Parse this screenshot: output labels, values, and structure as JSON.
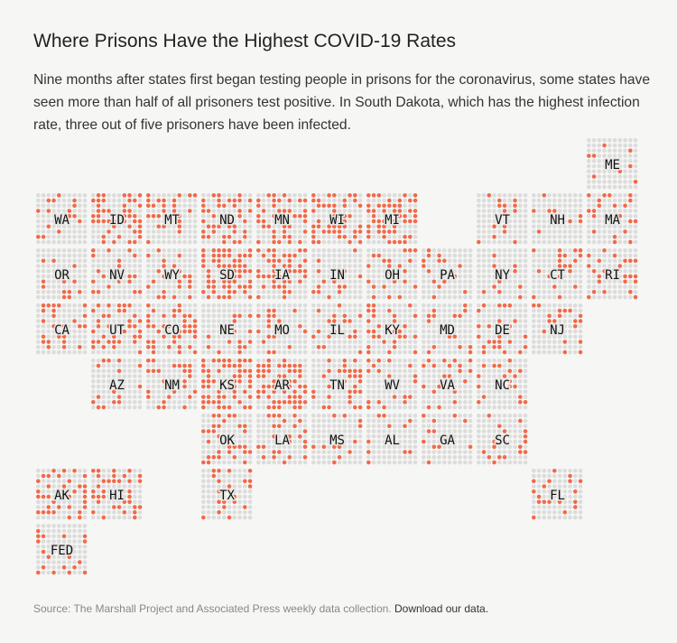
{
  "title": "Where Prisons Have the Highest COVID-19 Rates",
  "description": "Nine months after states first began testing people in prisons for the coronavirus, some states have seen more than half of all prisoners test positive. In South Dakota, which has the highest infection rate, three out of five prisoners have been infected.",
  "source_text": "Source: The Marshall Project and Associated Press weekly data collection.",
  "download_link": "Download our data.",
  "colors": {
    "infected": "#f06a4a",
    "not_infected": "#dcdcdc",
    "background": "#f6f6f4"
  },
  "chart_data": {
    "type": "tile-grid-map (10x10 dot grid per state)",
    "unit": "infected prisoners per 100 (estimated)",
    "states": [
      {
        "label": "ME",
        "row": 0,
        "col": 10,
        "rate": 8
      },
      {
        "label": "WA",
        "row": 1,
        "col": 0,
        "rate": 15
      },
      {
        "label": "ID",
        "row": 1,
        "col": 1,
        "rate": 45
      },
      {
        "label": "MT",
        "row": 1,
        "col": 2,
        "rate": 25
      },
      {
        "label": "ND",
        "row": 1,
        "col": 3,
        "rate": 40
      },
      {
        "label": "MN",
        "row": 1,
        "col": 4,
        "rate": 40
      },
      {
        "label": "WI",
        "row": 1,
        "col": 5,
        "rate": 45
      },
      {
        "label": "MI",
        "row": 1,
        "col": 6,
        "rate": 50
      },
      {
        "label": "VT",
        "row": 1,
        "col": 8,
        "rate": 15
      },
      {
        "label": "NH",
        "row": 1,
        "col": 9,
        "rate": 8
      },
      {
        "label": "MA",
        "row": 1,
        "col": 10,
        "rate": 20
      },
      {
        "label": "OR",
        "row": 2,
        "col": 0,
        "rate": 12
      },
      {
        "label": "NV",
        "row": 2,
        "col": 1,
        "rate": 20
      },
      {
        "label": "WY",
        "row": 2,
        "col": 2,
        "rate": 22
      },
      {
        "label": "SD",
        "row": 2,
        "col": 3,
        "rate": 60
      },
      {
        "label": "IA",
        "row": 2,
        "col": 4,
        "rate": 45
      },
      {
        "label": "IN",
        "row": 2,
        "col": 5,
        "rate": 15
      },
      {
        "label": "OH",
        "row": 2,
        "col": 6,
        "rate": 22
      },
      {
        "label": "PA",
        "row": 2,
        "col": 7,
        "rate": 15
      },
      {
        "label": "NY",
        "row": 2,
        "col": 8,
        "rate": 10
      },
      {
        "label": "CT",
        "row": 2,
        "col": 9,
        "rate": 20
      },
      {
        "label": "RI",
        "row": 2,
        "col": 10,
        "rate": 25
      },
      {
        "label": "CA",
        "row": 3,
        "col": 0,
        "rate": 25
      },
      {
        "label": "UT",
        "row": 3,
        "col": 1,
        "rate": 35
      },
      {
        "label": "CO",
        "row": 3,
        "col": 2,
        "rate": 40
      },
      {
        "label": "NE",
        "row": 3,
        "col": 3,
        "rate": 15
      },
      {
        "label": "MO",
        "row": 3,
        "col": 4,
        "rate": 20
      },
      {
        "label": "IL",
        "row": 3,
        "col": 5,
        "rate": 20
      },
      {
        "label": "KY",
        "row": 3,
        "col": 6,
        "rate": 30
      },
      {
        "label": "MD",
        "row": 3,
        "col": 7,
        "rate": 15
      },
      {
        "label": "DE",
        "row": 3,
        "col": 8,
        "rate": 25
      },
      {
        "label": "NJ",
        "row": 3,
        "col": 9,
        "rate": 18
      },
      {
        "label": "AZ",
        "row": 4,
        "col": 1,
        "rate": 15
      },
      {
        "label": "NM",
        "row": 4,
        "col": 2,
        "rate": 25
      },
      {
        "label": "KS",
        "row": 4,
        "col": 3,
        "rate": 55
      },
      {
        "label": "AR",
        "row": 4,
        "col": 4,
        "rate": 55
      },
      {
        "label": "TN",
        "row": 4,
        "col": 5,
        "rate": 30
      },
      {
        "label": "WV",
        "row": 4,
        "col": 6,
        "rate": 18
      },
      {
        "label": "VA",
        "row": 4,
        "col": 7,
        "rate": 20
      },
      {
        "label": "NC",
        "row": 4,
        "col": 8,
        "rate": 18
      },
      {
        "label": "OK",
        "row": 5,
        "col": 3,
        "rate": 30
      },
      {
        "label": "LA",
        "row": 5,
        "col": 4,
        "rate": 25
      },
      {
        "label": "MS",
        "row": 5,
        "col": 5,
        "rate": 12
      },
      {
        "label": "AL",
        "row": 5,
        "col": 6,
        "rate": 10
      },
      {
        "label": "GA",
        "row": 5,
        "col": 7,
        "rate": 12
      },
      {
        "label": "SC",
        "row": 5,
        "col": 8,
        "rate": 18
      },
      {
        "label": "AK",
        "row": 6,
        "col": 0,
        "rate": 35
      },
      {
        "label": "HI",
        "row": 6,
        "col": 1,
        "rate": 35
      },
      {
        "label": "TX",
        "row": 6,
        "col": 3,
        "rate": 20
      },
      {
        "label": "FL",
        "row": 6,
        "col": 9,
        "rate": 18
      },
      {
        "label": "FED",
        "row": 7,
        "col": 0,
        "rate": 20
      }
    ]
  }
}
